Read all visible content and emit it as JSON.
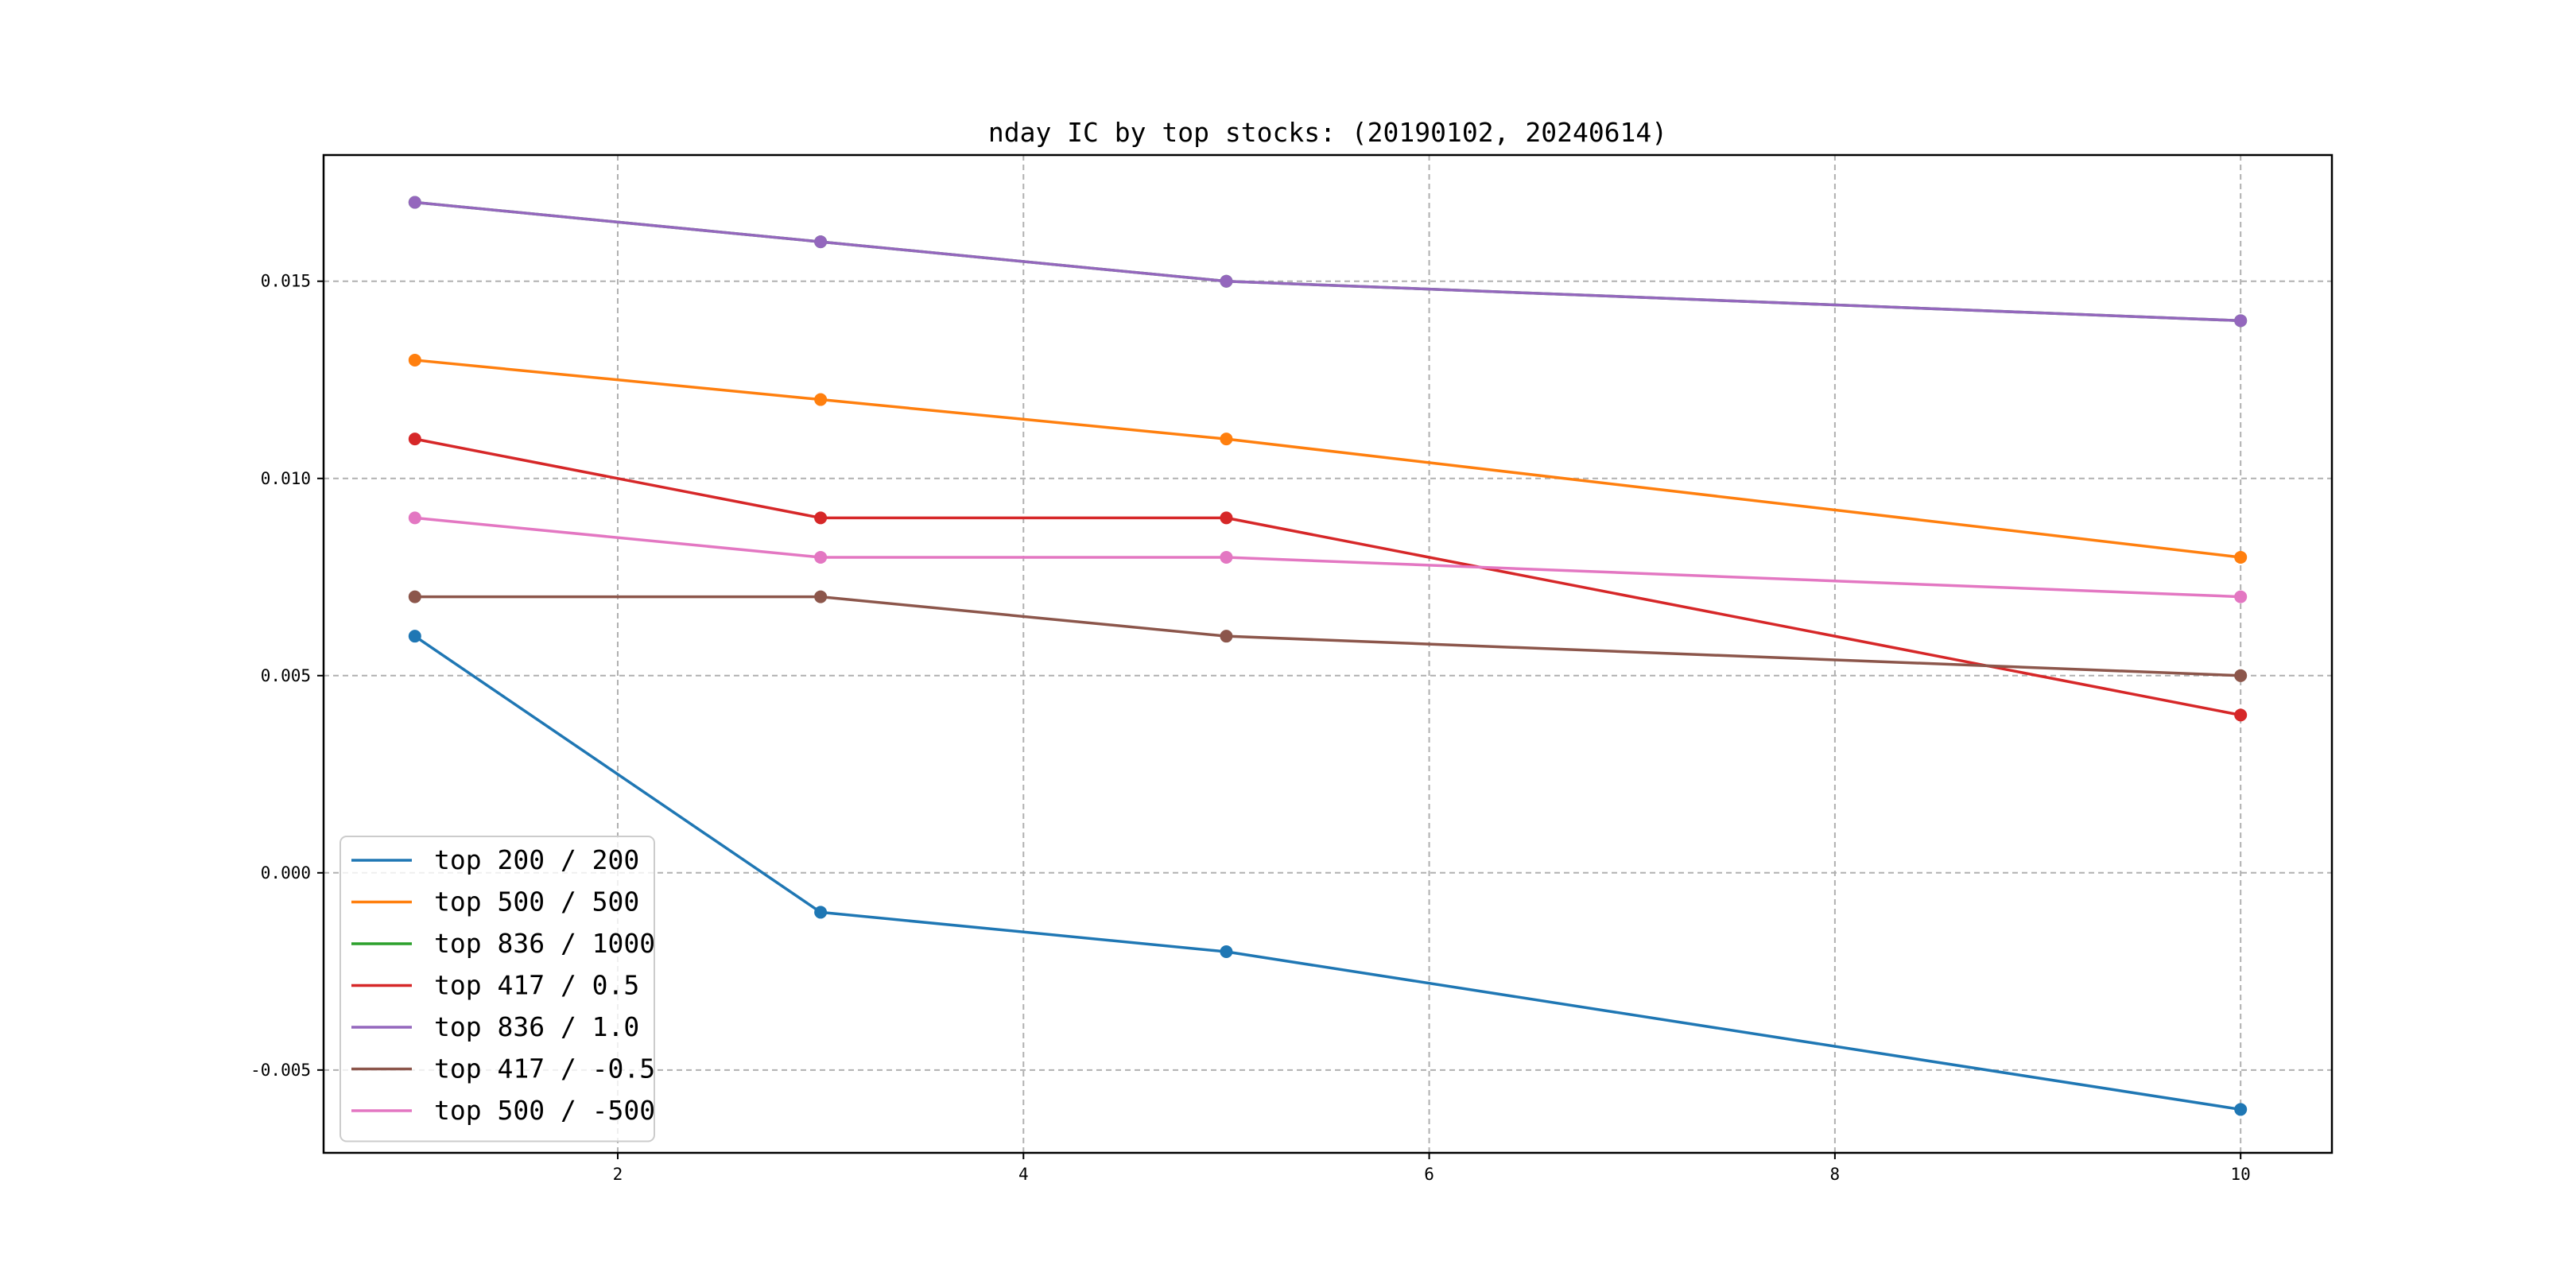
{
  "chart_data": {
    "type": "line",
    "title": "nday IC by top stocks: (20190102, 20240614)",
    "xlabel": "",
    "ylabel": "",
    "x": [
      1,
      3,
      5,
      10
    ],
    "xlim": [
      0.55,
      10.45
    ],
    "ylim": [
      -0.0071,
      0.0182
    ],
    "xticks": [
      2,
      4,
      6,
      8,
      10
    ],
    "xtick_labels": [
      "2",
      "4",
      "6",
      "8",
      "10"
    ],
    "yticks": [
      -0.005,
      0.0,
      0.005,
      0.01,
      0.015
    ],
    "ytick_labels": [
      "-0.005",
      "0.000",
      "0.005",
      "0.010",
      "0.015"
    ],
    "grid": true,
    "legend_position": "lower-left",
    "series": [
      {
        "name": "top 200 / 200",
        "color": "#1f77b4",
        "values": [
          0.006,
          -0.001,
          -0.002,
          -0.006
        ]
      },
      {
        "name": "top 500 / 500",
        "color": "#ff7f0e",
        "values": [
          0.013,
          0.012,
          0.011,
          0.008
        ]
      },
      {
        "name": "top 836 / 1000",
        "color": "#2ca02c",
        "values": [
          0.017,
          0.016,
          0.015,
          0.014
        ]
      },
      {
        "name": "top 417 / 0.5",
        "color": "#d62728",
        "values": [
          0.011,
          0.009,
          0.009,
          0.004
        ]
      },
      {
        "name": "top 836 / 1.0",
        "color": "#9467bd",
        "values": [
          0.017,
          0.016,
          0.015,
          0.014
        ]
      },
      {
        "name": "top 417 / -0.5",
        "color": "#8c564b",
        "values": [
          0.007,
          0.007,
          0.006,
          0.005
        ]
      },
      {
        "name": "top 500 / -500",
        "color": "#e377c2",
        "values": [
          0.009,
          0.008,
          0.008,
          0.007
        ]
      }
    ]
  }
}
